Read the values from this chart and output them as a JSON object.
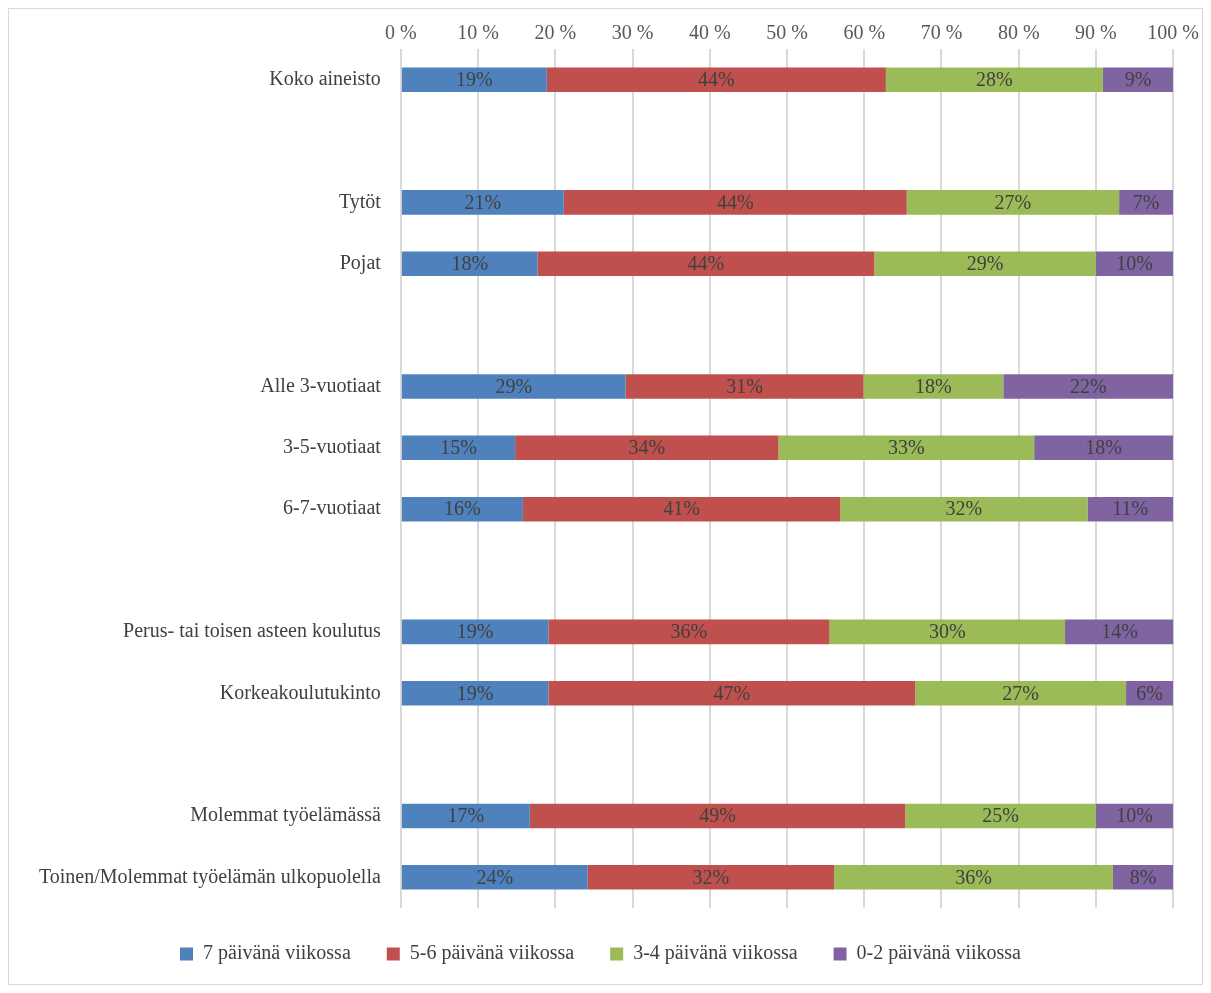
{
  "chart_data": {
    "type": "bar",
    "orientation": "horizontal",
    "stacked": true,
    "categories": [
      "Koko aineisto",
      null,
      "Tytöt",
      "Pojat",
      null,
      "Alle 3-vuotiaat",
      "3-5-vuotiaat",
      "6-7-vuotiaat",
      null,
      "Perus- tai toisen asteen koulutus",
      "Korkeakoulutukinto",
      null,
      "Molemmat työelämässä",
      "Toinen/Molemmat työelämän ulkopuolella"
    ],
    "series": [
      {
        "name": "7 päivänä viikossa",
        "color": "#4f81bd",
        "values": [
          18.9,
          null,
          21.1,
          17.7,
          null,
          29.1,
          14.8,
          15.8,
          null,
          19.1,
          19.1,
          null,
          16.7,
          24.2
        ],
        "value_labels": [
          "19%",
          null,
          "21%",
          "18%",
          null,
          "29%",
          "15%",
          "16%",
          null,
          "19%",
          "19%",
          null,
          "17%",
          "24%"
        ]
      },
      {
        "name": "5-6 päivänä viikossa",
        "color": "#c0504d",
        "values": [
          43.9,
          null,
          44.4,
          43.6,
          null,
          30.8,
          34.1,
          41.1,
          null,
          36.4,
          47.5,
          null,
          48.6,
          31.9
        ],
        "value_labels": [
          "44%",
          null,
          "44%",
          "44%",
          null,
          "31%",
          "34%",
          "41%",
          null,
          "36%",
          "47%",
          null,
          "49%",
          "32%"
        ]
      },
      {
        "name": "3-4 päivänä viikossa",
        "color": "#9bbb59",
        "values": [
          28.1,
          null,
          27.5,
          28.7,
          null,
          18.1,
          33.1,
          32.0,
          null,
          30.5,
          27.3,
          null,
          24.7,
          36.1
        ],
        "value_labels": [
          "28%",
          null,
          "27%",
          "29%",
          null,
          "18%",
          "33%",
          "32%",
          null,
          "30%",
          "27%",
          null,
          "25%",
          "36%"
        ]
      },
      {
        "name": "0-2 päivänä viikossa",
        "color": "#8064a2",
        "values": [
          9.1,
          null,
          7.0,
          10.0,
          null,
          22.0,
          18.0,
          11.1,
          null,
          14.1,
          6.1,
          null,
          10.0,
          7.8
        ],
        "value_labels": [
          "9%",
          null,
          "7%",
          "10%",
          null,
          "22%",
          "18%",
          "11%",
          null,
          "14%",
          "6%",
          null,
          "10%",
          "8%"
        ]
      }
    ],
    "xlim": [
      0,
      100
    ],
    "xticks": [
      {
        "value": 0,
        "label": "0 %"
      },
      {
        "value": 10,
        "label": "10 %"
      },
      {
        "value": 20,
        "label": "20 %"
      },
      {
        "value": 30,
        "label": "30 %"
      },
      {
        "value": 40,
        "label": "40 %"
      },
      {
        "value": 50,
        "label": "50 %"
      },
      {
        "value": 60,
        "label": "60 %"
      },
      {
        "value": 70,
        "label": "70 %"
      },
      {
        "value": 80,
        "label": "80 %"
      },
      {
        "value": 90,
        "label": "90 %"
      },
      {
        "value": 100,
        "label": "100 %"
      }
    ],
    "grid": "x",
    "legend": "bottom"
  }
}
